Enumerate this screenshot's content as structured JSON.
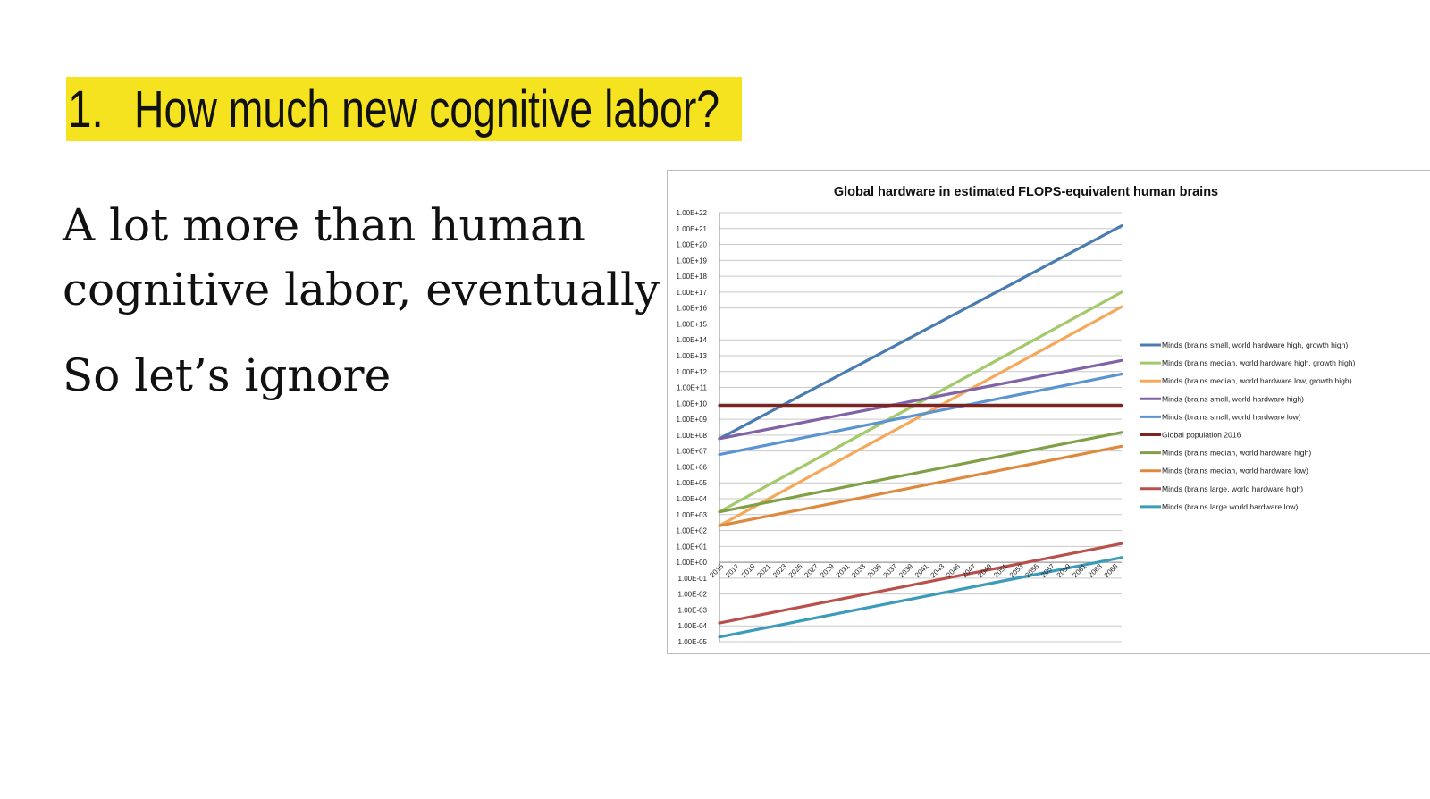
{
  "slide": {
    "title_number": "1.",
    "title": "How much new cognitive labor?",
    "body_line1": "A lot more than human",
    "body_line2": "cognitive labor, eventually",
    "body_line3": "So let’s ignore",
    "highlight_color": "#f5e31f"
  },
  "chart_data": {
    "type": "line",
    "title": "Global hardware in estimated FLOPS-equivalent human brains",
    "xlabel": "",
    "ylabel": "",
    "y_scale": "log",
    "ylim": [
      1e-05,
      1e+22
    ],
    "y_tick_labels": [
      "1.00E-05",
      "1.00E-04",
      "1.00E-03",
      "1.00E-02",
      "1.00E-01",
      "1.00E+00",
      "1.00E+01",
      "1.00E+02",
      "1.00E+03",
      "1.00E+04",
      "1.00E+05",
      "1.00E+06",
      "1.00E+07",
      "1.00E+08",
      "1.00E+09",
      "1.00E+10",
      "1.00E+11",
      "1.00E+12",
      "1.00E+13",
      "1.00E+14",
      "1.00E+15",
      "1.00E+16",
      "1.00E+17",
      "1.00E+18",
      "1.00E+19",
      "1.00E+20",
      "1.00E+21",
      "1.00E+22"
    ],
    "x_tick_labels": [
      "2015",
      "2017",
      "2019",
      "2021",
      "2023",
      "2025",
      "2027",
      "2029",
      "2031",
      "2033",
      "2035",
      "2037",
      "2039",
      "2041",
      "2043",
      "2045",
      "2047",
      "2049",
      "2051",
      "2053",
      "2055",
      "2057",
      "2059",
      "2061",
      "2063",
      "2065"
    ],
    "xlim": [
      2015,
      2066
    ],
    "grid": true,
    "legend_position": "right",
    "series": [
      {
        "name": "Minds (brains small, world hardware high, growth high)",
        "color": "#4a7cb0",
        "x": [
          2015,
          2066
        ],
        "y": [
          60000000.0,
          1.5e+21
        ]
      },
      {
        "name": "Minds (brains median, world hardware high, growth high)",
        "color": "#a2c96a",
        "x": [
          2015,
          2066
        ],
        "y": [
          1500.0,
          1e+17
        ]
      },
      {
        "name": "Minds (brains median, world hardware low, growth high)",
        "color": "#f5a85a",
        "x": [
          2015,
          2066
        ],
        "y": [
          200.0,
          1.2e+16
        ]
      },
      {
        "name": "Minds (brains small, world hardware high)",
        "color": "#8063a6",
        "x": [
          2015,
          2066
        ],
        "y": [
          60000000.0,
          5000000000000.0
        ]
      },
      {
        "name": "Minds (brains small, world hardware low)",
        "color": "#5b94d1",
        "x": [
          2015,
          2066
        ],
        "y": [
          6000000.0,
          700000000000.0
        ]
      },
      {
        "name": "Global population 2016",
        "color": "#7b2422",
        "x": [
          2015,
          2066
        ],
        "y": [
          7400000000.0,
          7400000000.0
        ]
      },
      {
        "name": "Minds (brains median, world hardware high)",
        "color": "#7fa046",
        "x": [
          2015,
          2066
        ],
        "y": [
          1500.0,
          150000000.0
        ]
      },
      {
        "name": "Minds (brains median, world hardware low)",
        "color": "#de8a3e",
        "x": [
          2015,
          2066
        ],
        "y": [
          200.0,
          20000000.0
        ]
      },
      {
        "name": "Minds (brains large, world hardware high)",
        "color": "#b8504b",
        "x": [
          2015,
          2066
        ],
        "y": [
          0.00015,
          15.0
        ]
      },
      {
        "name": "Minds (brains large world hardware low)",
        "color": "#3b9bb8",
        "x": [
          2015,
          2066
        ],
        "y": [
          2e-05,
          2.0
        ]
      }
    ]
  }
}
